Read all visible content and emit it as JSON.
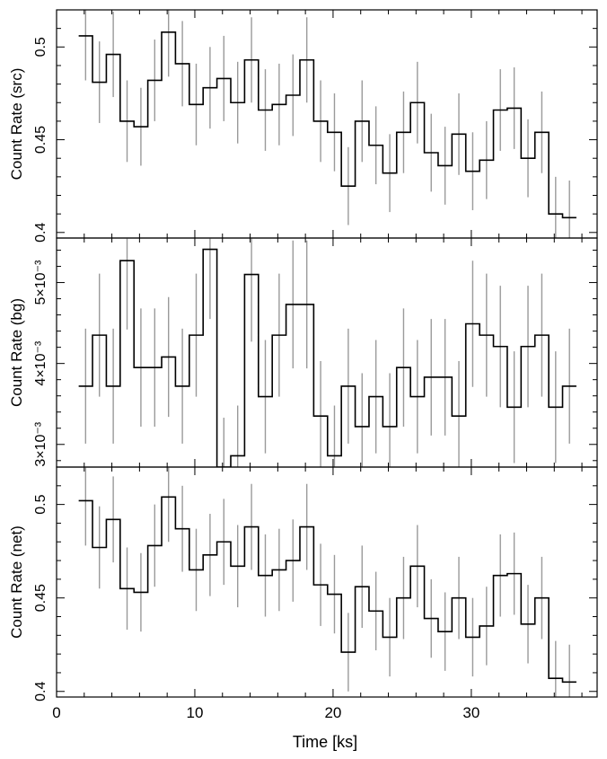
{
  "chart_data": [
    {
      "type": "line",
      "ylabel": "Count Rate (src)",
      "ylim": [
        0.397,
        0.52
      ],
      "yticks": [
        {
          "value": 0.4,
          "label": "0.4"
        },
        {
          "value": 0.45,
          "label": "0.45"
        },
        {
          "value": 0.5,
          "label": "0.5"
        }
      ],
      "xlim": [
        0,
        39.1
      ],
      "series": [
        {
          "x": [
            2.1,
            3.1,
            4.1,
            5.1,
            6.1,
            7.1,
            8.1,
            9.1,
            10.1,
            11.1,
            12.1,
            13.1,
            14.1,
            15.1,
            16.1,
            17.1,
            18.1,
            19.1,
            20.1,
            21.1,
            22.1,
            23.1,
            24.1,
            25.1,
            26.1,
            27.1,
            28.1,
            29.1,
            30.1,
            31.1,
            32.1,
            33.1,
            34.1,
            35.1,
            36.1,
            37.1
          ],
          "y": [
            0.506,
            0.481,
            0.496,
            0.46,
            0.457,
            0.482,
            0.508,
            0.491,
            0.469,
            0.478,
            0.483,
            0.47,
            0.493,
            0.466,
            0.469,
            0.474,
            0.493,
            0.46,
            0.454,
            0.425,
            0.46,
            0.447,
            0.432,
            0.454,
            0.47,
            0.443,
            0.436,
            0.453,
            0.433,
            0.439,
            0.466,
            0.467,
            0.44,
            0.454,
            0.41,
            0.408
          ],
          "err": [
            0.024,
            0.022,
            0.023,
            0.022,
            0.021,
            0.022,
            0.024,
            0.023,
            0.022,
            0.022,
            0.023,
            0.022,
            0.023,
            0.022,
            0.022,
            0.022,
            0.023,
            0.022,
            0.021,
            0.021,
            0.022,
            0.021,
            0.021,
            0.022,
            0.022,
            0.021,
            0.021,
            0.022,
            0.021,
            0.021,
            0.022,
            0.022,
            0.021,
            0.022,
            0.02,
            0.02
          ],
          "binwidth": 1.0,
          "step_color": "#000000",
          "error_color": "#9a9a9a"
        }
      ]
    },
    {
      "type": "line",
      "ylabel": "Count Rate (bg)",
      "ylim": [
        0.00272,
        0.00555
      ],
      "yticks": [
        {
          "value": 0.003,
          "label": "3×10⁻³"
        },
        {
          "value": 0.004,
          "label": "4×10⁻³"
        },
        {
          "value": 0.005,
          "label": "5×10⁻³"
        }
      ],
      "xlim": [
        0,
        39.1
      ],
      "series": [
        {
          "x": [
            2.1,
            3.1,
            4.1,
            5.1,
            6.1,
            7.1,
            8.1,
            9.1,
            10.1,
            11.1,
            12.1,
            13.1,
            14.1,
            15.1,
            16.1,
            17.1,
            18.1,
            19.1,
            20.1,
            21.1,
            22.1,
            23.1,
            24.1,
            25.1,
            26.1,
            27.1,
            28.1,
            29.1,
            30.1,
            31.1,
            32.1,
            33.1,
            34.1,
            35.1,
            36.1,
            37.1
          ],
          "y": [
            0.00372,
            0.00435,
            0.00372,
            0.00527,
            0.00395,
            0.00395,
            0.00408,
            0.00372,
            0.00435,
            0.00541,
            0.00272,
            0.00286,
            0.0051,
            0.00359,
            0.00435,
            0.00473,
            0.00473,
            0.00335,
            0.00286,
            0.00372,
            0.00322,
            0.00359,
            0.00322,
            0.00395,
            0.00359,
            0.00383,
            0.00383,
            0.00335,
            0.00449,
            0.00435,
            0.00421,
            0.00346,
            0.00421,
            0.00435,
            0.00346,
            0.00372
          ],
          "err": [
            0.00071,
            0.00076,
            0.00071,
            0.00085,
            0.00073,
            0.00073,
            0.00074,
            0.00071,
            0.00076,
            0.00086,
            0.00061,
            0.00062,
            0.00083,
            0.0007,
            0.00076,
            0.00079,
            0.00079,
            0.00068,
            0.00062,
            0.00071,
            0.00066,
            0.0007,
            0.00066,
            0.00073,
            0.0007,
            0.00072,
            0.00072,
            0.00068,
            0.00078,
            0.00076,
            0.00075,
            0.00069,
            0.00075,
            0.00076,
            0.00069,
            0.00071
          ],
          "binwidth": 1.0,
          "step_color": "#000000",
          "error_color": "#9a9a9a"
        }
      ]
    },
    {
      "type": "line",
      "ylabel": "Count Rate (net)",
      "xlabel": "Time [ks]",
      "ylim": [
        0.397,
        0.52
      ],
      "yticks": [
        {
          "value": 0.4,
          "label": "0.4"
        },
        {
          "value": 0.45,
          "label": "0.45"
        },
        {
          "value": 0.5,
          "label": "0.5"
        }
      ],
      "xlim": [
        0,
        39.1
      ],
      "xticks": [
        {
          "value": 0,
          "label": "0"
        },
        {
          "value": 10,
          "label": "10"
        },
        {
          "value": 20,
          "label": "20"
        },
        {
          "value": 30,
          "label": "30"
        }
      ],
      "series": [
        {
          "x": [
            2.1,
            3.1,
            4.1,
            5.1,
            6.1,
            7.1,
            8.1,
            9.1,
            10.1,
            11.1,
            12.1,
            13.1,
            14.1,
            15.1,
            16.1,
            17.1,
            18.1,
            19.1,
            20.1,
            21.1,
            22.1,
            23.1,
            24.1,
            25.1,
            26.1,
            27.1,
            28.1,
            29.1,
            30.1,
            31.1,
            32.1,
            33.1,
            34.1,
            35.1,
            36.1,
            37.1
          ],
          "y": [
            0.502,
            0.477,
            0.492,
            0.455,
            0.453,
            0.478,
            0.504,
            0.487,
            0.465,
            0.473,
            0.48,
            0.467,
            0.488,
            0.462,
            0.465,
            0.47,
            0.488,
            0.457,
            0.452,
            0.421,
            0.456,
            0.443,
            0.429,
            0.45,
            0.467,
            0.439,
            0.432,
            0.45,
            0.429,
            0.435,
            0.462,
            0.463,
            0.436,
            0.45,
            0.407,
            0.405
          ],
          "err": [
            0.024,
            0.022,
            0.023,
            0.022,
            0.021,
            0.022,
            0.024,
            0.023,
            0.022,
            0.022,
            0.023,
            0.022,
            0.023,
            0.022,
            0.022,
            0.022,
            0.023,
            0.022,
            0.021,
            0.021,
            0.022,
            0.021,
            0.021,
            0.022,
            0.022,
            0.021,
            0.021,
            0.022,
            0.021,
            0.021,
            0.022,
            0.022,
            0.021,
            0.022,
            0.02,
            0.02
          ],
          "binwidth": 1.0,
          "step_color": "#000000",
          "error_color": "#9a9a9a"
        }
      ]
    }
  ]
}
